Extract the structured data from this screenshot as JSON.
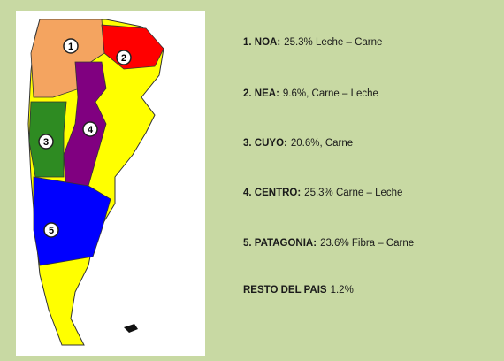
{
  "map": {
    "markers": [
      "1",
      "2",
      "3",
      "4",
      "5"
    ]
  },
  "items": [
    {
      "label": "1. NOA:",
      "text": "25.3%  Leche – Carne"
    },
    {
      "label": "2. NEA:",
      "text": "9.6%, Carne – Leche"
    },
    {
      "label": "3. CUYO:",
      "text": "20.6%, Carne"
    },
    {
      "label": "4. CENTRO:",
      "text": "25.3% Carne – Leche"
    },
    {
      "label": "5. PATAGONIA:",
      "text": "23.6% Fibra – Carne"
    },
    {
      "label": "RESTO DEL PAIS",
      "text": "1.2%"
    }
  ]
}
